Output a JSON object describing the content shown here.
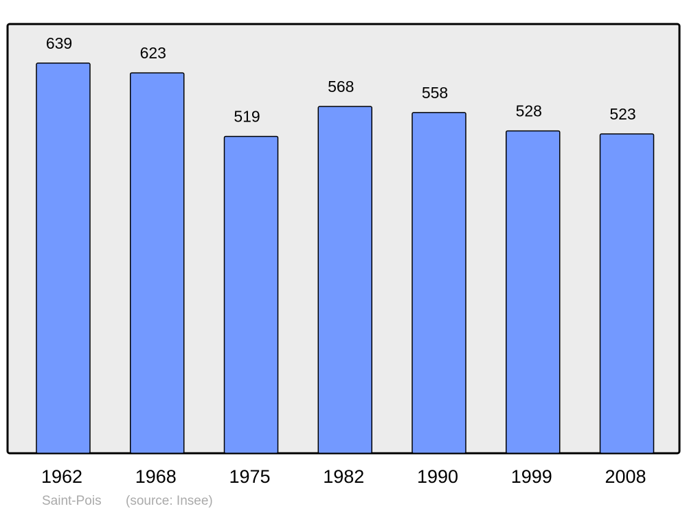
{
  "chart_data": {
    "type": "bar",
    "categories": [
      "1962",
      "1968",
      "1975",
      "1982",
      "1990",
      "1999",
      "2008"
    ],
    "values": [
      639,
      623,
      519,
      568,
      558,
      528,
      523
    ],
    "color": "#7399ff",
    "ylim": [
      0,
      703
    ],
    "caption": "Saint-Pois",
    "source": "(source: Insee)"
  }
}
